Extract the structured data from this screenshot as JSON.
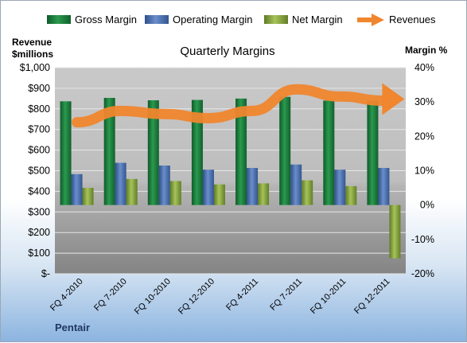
{
  "chart_data": {
    "type": "bar",
    "title": "Quarterly Margins",
    "categories": [
      "FQ 4-2010",
      "FQ 7-2010",
      "FQ 10-2010",
      "FQ 12-2010",
      "FQ 4-2011",
      "FQ 7-2011",
      "FQ 10-2011",
      "FQ 12-2011"
    ],
    "series": [
      {
        "name": "Gross Margin",
        "type": "bar",
        "axis": "right",
        "values": [
          30.2,
          31.2,
          30.5,
          30.6,
          31.0,
          31.5,
          30.4,
          30.4
        ],
        "color": "#1e7b3e"
      },
      {
        "name": "Operating Margin",
        "type": "bar",
        "axis": "right",
        "values": [
          9.0,
          12.3,
          11.5,
          10.3,
          10.8,
          11.8,
          10.3,
          10.8
        ],
        "color": "#4a6fae"
      },
      {
        "name": "Net Margin",
        "type": "bar",
        "axis": "right",
        "values": [
          5.0,
          7.6,
          7.0,
          6.0,
          6.3,
          7.2,
          5.5,
          -15.5
        ],
        "color": "#8aa83d"
      },
      {
        "name": "Revenues",
        "type": "line",
        "axis": "left",
        "values": [
          735,
          790,
          775,
          755,
          790,
          895,
          860,
          840
        ],
        "color": "#f0862e"
      }
    ],
    "ylabel_left": "Revenue\n$millions",
    "ylabel_right": "Margin %",
    "ylim_left": [
      0,
      1000
    ],
    "ylim_right": [
      -20,
      40
    ],
    "yticks_left": [
      "$1,000",
      "$900",
      "$800",
      "$700",
      "$600",
      "$500",
      "$400",
      "$300",
      "$200",
      "$100",
      "$-"
    ],
    "yticks_right": [
      "40%",
      "30%",
      "20%",
      "10%",
      "0%",
      "-10%",
      "-20%"
    ],
    "legend_position": "top",
    "grid": true
  },
  "footer": {
    "source": "Pentair"
  }
}
